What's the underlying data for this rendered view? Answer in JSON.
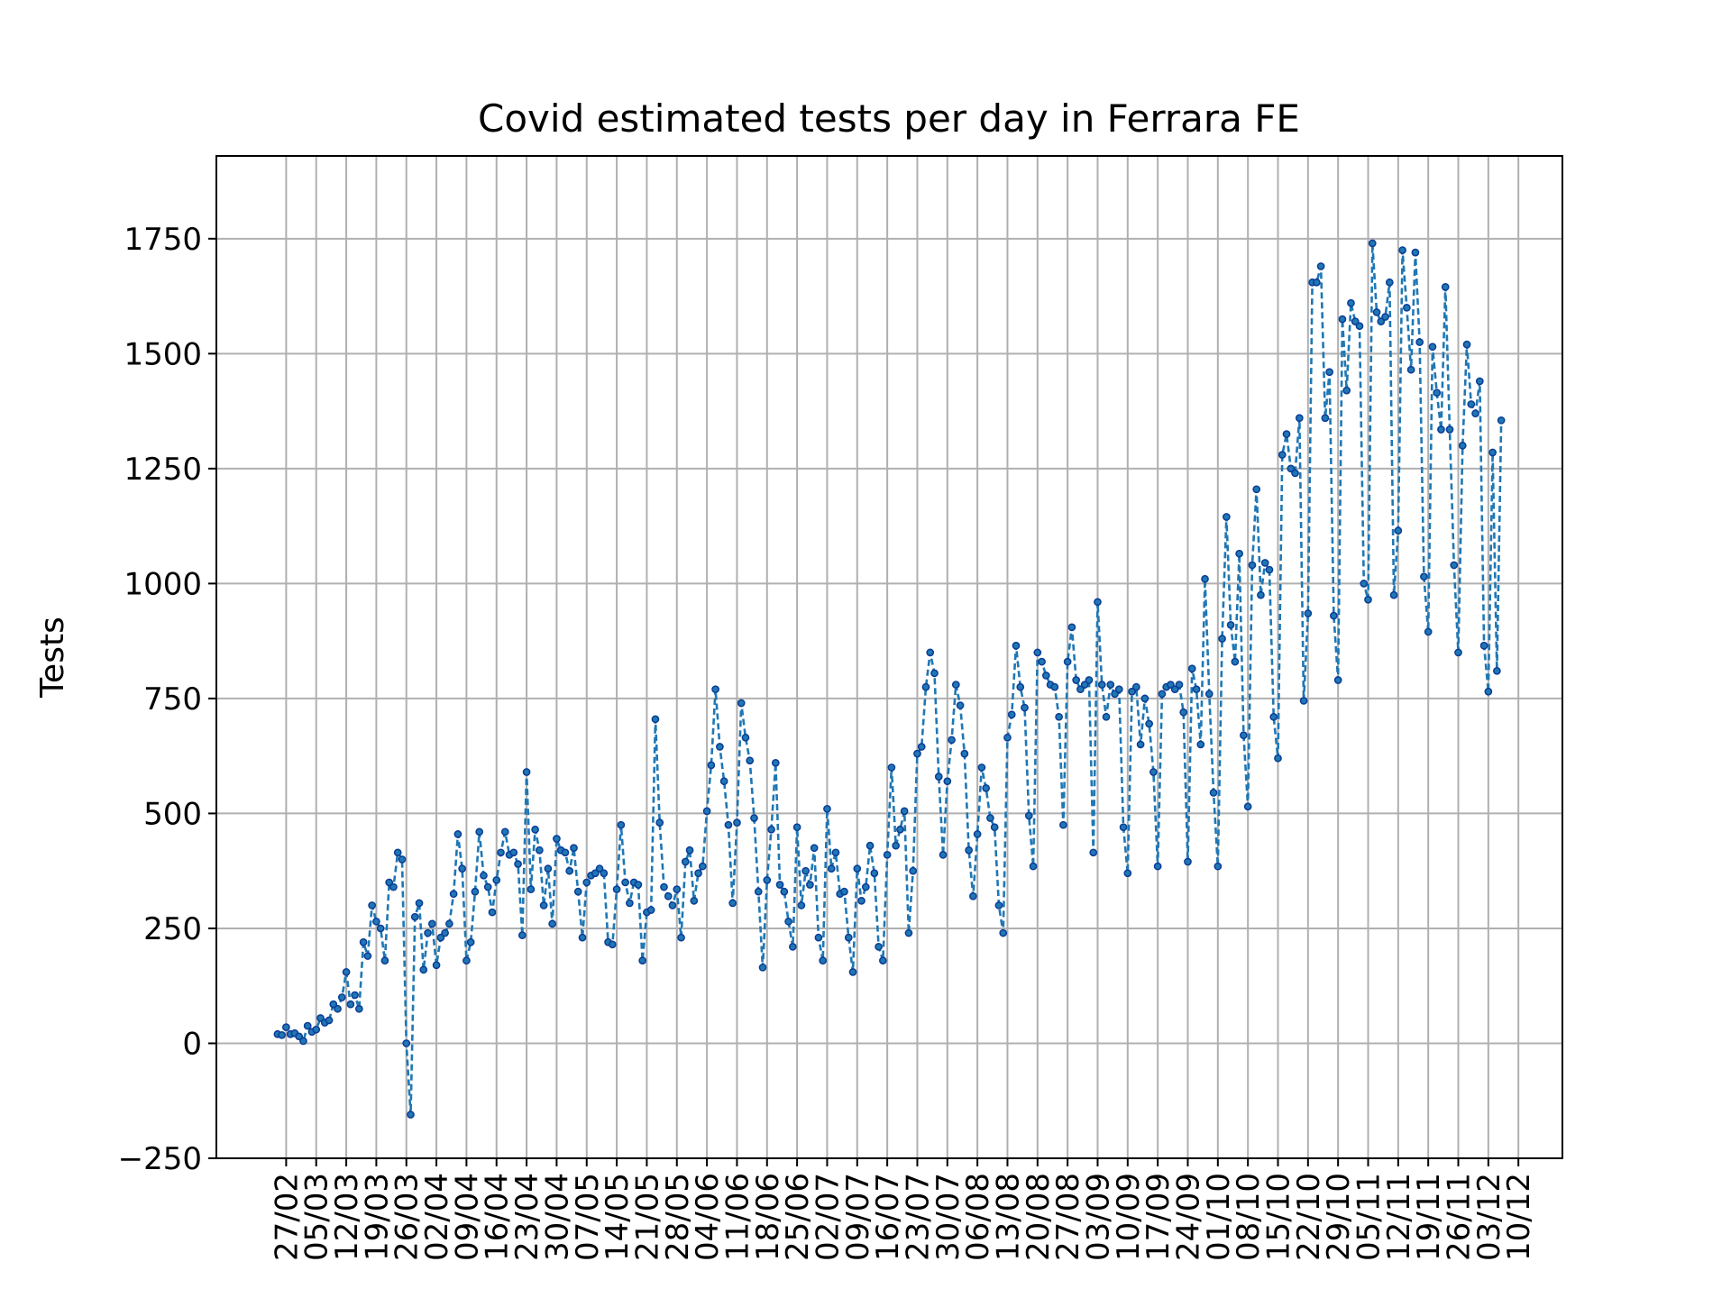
{
  "chart_data": {
    "type": "line",
    "title": "Covid estimated tests per day in Ferrara FE",
    "xlabel": "",
    "ylabel": "Tests",
    "ylim": [
      -250,
      1930
    ],
    "yticks": [
      -250,
      0,
      250,
      500,
      750,
      1000,
      1250,
      1500,
      1750
    ],
    "ytick_labels": [
      "−250",
      "0",
      "250",
      "500",
      "750",
      "1000",
      "1250",
      "1500",
      "1750"
    ],
    "x_start": "2020-02-25",
    "xticks": [
      "2020-02-27",
      "2020-03-05",
      "2020-03-12",
      "2020-03-19",
      "2020-03-26",
      "2020-04-02",
      "2020-04-09",
      "2020-04-16",
      "2020-04-23",
      "2020-04-30",
      "2020-05-07",
      "2020-05-14",
      "2020-05-21",
      "2020-05-28",
      "2020-06-04",
      "2020-06-11",
      "2020-06-18",
      "2020-06-25",
      "2020-07-02",
      "2020-07-09",
      "2020-07-16",
      "2020-07-23",
      "2020-07-30",
      "2020-08-06",
      "2020-08-13",
      "2020-08-20",
      "2020-08-27",
      "2020-09-03",
      "2020-09-10",
      "2020-09-17",
      "2020-09-24",
      "2020-10-01",
      "2020-10-08",
      "2020-10-15",
      "2020-10-22",
      "2020-10-29",
      "2020-11-05",
      "2020-11-12",
      "2020-11-19",
      "2020-11-26",
      "2020-12-03",
      "2020-12-10"
    ],
    "xtick_labels": [
      "27/02",
      "05/03",
      "12/03",
      "19/03",
      "26/03",
      "02/04",
      "09/04",
      "16/04",
      "23/04",
      "30/04",
      "07/05",
      "14/05",
      "21/05",
      "28/05",
      "04/06",
      "11/06",
      "18/06",
      "25/06",
      "02/07",
      "09/07",
      "16/07",
      "23/07",
      "30/07",
      "06/08",
      "13/08",
      "20/08",
      "27/08",
      "03/09",
      "10/09",
      "17/09",
      "24/09",
      "01/10",
      "08/10",
      "15/10",
      "22/10",
      "29/10",
      "05/11",
      "12/11",
      "19/11",
      "26/11",
      "03/12",
      "10/12"
    ],
    "grid": true,
    "series": [
      {
        "color": "#1f77b4",
        "marker_color": "#0b3c96",
        "values": [
          20,
          18,
          35,
          20,
          22,
          15,
          5,
          38,
          25,
          30,
          55,
          45,
          50,
          85,
          75,
          100,
          155,
          85,
          105,
          75,
          220,
          190,
          300,
          265,
          250,
          180,
          350,
          340,
          415,
          400,
          0,
          -155,
          275,
          305,
          160,
          240,
          260,
          170,
          230,
          240,
          260,
          325,
          455,
          380,
          180,
          220,
          330,
          460,
          365,
          340,
          285,
          355,
          415,
          460,
          410,
          415,
          390,
          235,
          590,
          335,
          465,
          420,
          300,
          380,
          260,
          445,
          420,
          415,
          375,
          425,
          330,
          230,
          350,
          365,
          370,
          380,
          370,
          220,
          215,
          335,
          475,
          350,
          305,
          350,
          345,
          180,
          285,
          290,
          705,
          480,
          340,
          320,
          300,
          335,
          230,
          395,
          420,
          310,
          370,
          385,
          505,
          605,
          770,
          645,
          570,
          475,
          305,
          480,
          740,
          665,
          615,
          490,
          330,
          165,
          355,
          465,
          610,
          345,
          330,
          265,
          210,
          470,
          300,
          375,
          345,
          425,
          230,
          180,
          510,
          380,
          415,
          325,
          330,
          230,
          155,
          380,
          310,
          340,
          430,
          370,
          210,
          180,
          410,
          600,
          430,
          465,
          505,
          240,
          375,
          630,
          645,
          775,
          850,
          805,
          580,
          410,
          570,
          660,
          780,
          735,
          630,
          420,
          320,
          455,
          600,
          555,
          490,
          470,
          300,
          240,
          665,
          715,
          865,
          775,
          730,
          495,
          385,
          850,
          830,
          800,
          780,
          775,
          710,
          475,
          830,
          905,
          790,
          770,
          780,
          790,
          415,
          960,
          780,
          710,
          780,
          760,
          770,
          470,
          370,
          765,
          775,
          650,
          750,
          695,
          590,
          385,
          760,
          775,
          780,
          770,
          780,
          720,
          395,
          815,
          770,
          650,
          1010,
          760,
          545,
          385,
          880,
          1145,
          910,
          830,
          1065,
          670,
          515,
          1040,
          1205,
          975,
          1045,
          1030,
          710,
          620,
          1280,
          1325,
          1250,
          1240,
          1360,
          745,
          935,
          1655,
          1655,
          1690,
          1360,
          1460,
          930,
          790,
          1575,
          1420,
          1610,
          1570,
          1560,
          1000,
          965,
          1740,
          1590,
          1570,
          1580,
          1655,
          975,
          1115,
          1725,
          1600,
          1465,
          1720,
          1525,
          1015,
          895,
          1515,
          1415,
          1335,
          1645,
          1335,
          1040,
          850,
          1300,
          1520,
          1390,
          1370,
          1440,
          865,
          765,
          1285,
          810,
          1355
        ]
      }
    ]
  }
}
